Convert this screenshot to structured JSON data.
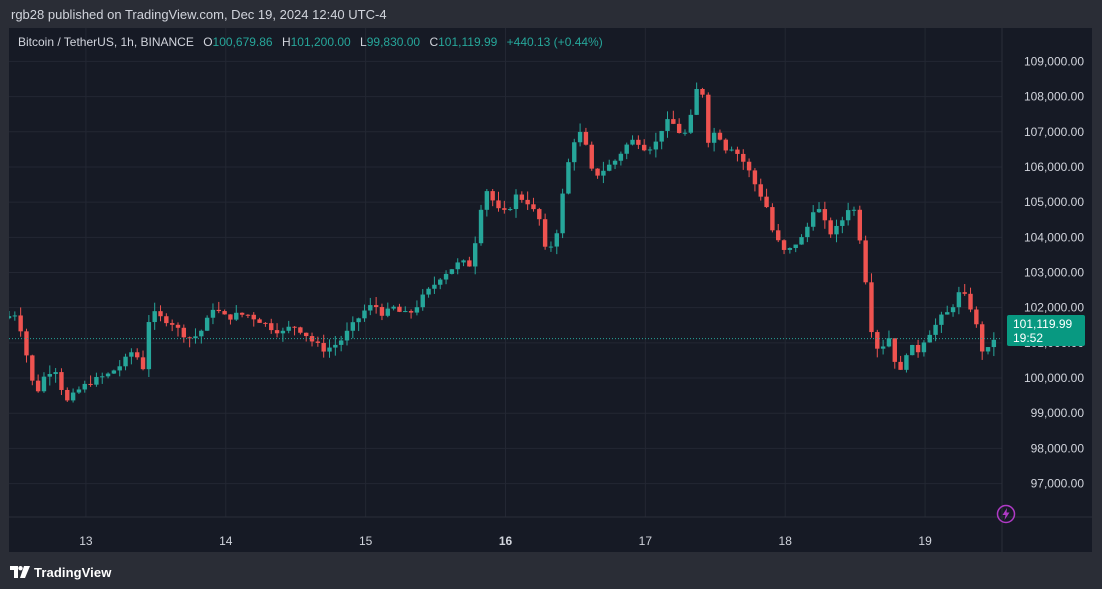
{
  "published": "rgb28 published on TradingView.com, Dec 19, 2024 12:40 UTC-4",
  "legend": {
    "symbol": "Bitcoin / TetherUS, 1h, BINANCE",
    "o_label": "O",
    "o_value": "100,679.86",
    "h_label": "H",
    "h_value": "101,200.00",
    "l_label": "L",
    "l_value": "99,830.00",
    "c_label": "C",
    "c_value": "101,119.99",
    "change": "+440.13 (+0.44%)"
  },
  "last_price": {
    "price": "101,119.99",
    "countdown": "19:52"
  },
  "footer": {
    "brand": "TradingView"
  },
  "colors": {
    "up": "#26a69a",
    "down": "#ef5350",
    "bg": "#161a25",
    "grid": "#232733",
    "text": "#d1d4dc",
    "alert": "#b03ac6"
  },
  "chart_data": {
    "type": "candlestick",
    "title": "Bitcoin / TetherUS, 1h, BINANCE",
    "interval": "1h",
    "y_ticks": [
      "109,000.00",
      "108,000.00",
      "107,000.00",
      "106,000.00",
      "105,000.00",
      "104,000.00",
      "103,000.00",
      "102,000.00",
      "101,000.00",
      "100,000.00",
      "99,000.00",
      "98,000.00",
      "97,000.00"
    ],
    "y_tick_values": [
      109000,
      108000,
      107000,
      106000,
      105000,
      104000,
      103000,
      102000,
      101000,
      100000,
      99000,
      98000,
      97000
    ],
    "ylim": [
      96050,
      109950
    ],
    "x_ticks": [
      "13",
      "14",
      "15",
      "16",
      "17",
      "18",
      "19"
    ],
    "x_tick_bold": [
      false,
      false,
      false,
      true,
      false,
      false,
      false
    ],
    "x_range_days": [
      12.45,
      19.55
    ],
    "grid": true,
    "last_price": 101119.99,
    "path": [
      [
        12.45,
        101700
      ],
      [
        12.55,
        101850
      ],
      [
        12.62,
        100600
      ],
      [
        12.68,
        99500
      ],
      [
        12.75,
        100100
      ],
      [
        12.82,
        100300
      ],
      [
        12.9,
        99300
      ],
      [
        13.0,
        99700
      ],
      [
        13.08,
        99900
      ],
      [
        13.2,
        100100
      ],
      [
        13.3,
        100400
      ],
      [
        13.38,
        100800
      ],
      [
        13.45,
        100300
      ],
      [
        13.5,
        101900
      ],
      [
        13.58,
        101700
      ],
      [
        13.65,
        101600
      ],
      [
        13.72,
        101300
      ],
      [
        13.8,
        101100
      ],
      [
        13.88,
        101400
      ],
      [
        13.95,
        102000
      ],
      [
        14.05,
        101700
      ],
      [
        14.12,
        101800
      ],
      [
        14.2,
        101800
      ],
      [
        14.3,
        101600
      ],
      [
        14.38,
        101400
      ],
      [
        14.45,
        101300
      ],
      [
        14.52,
        101500
      ],
      [
        14.6,
        101300
      ],
      [
        14.67,
        101000
      ],
      [
        14.75,
        100800
      ],
      [
        14.85,
        101000
      ],
      [
        14.95,
        101500
      ],
      [
        15.03,
        101900
      ],
      [
        15.1,
        102100
      ],
      [
        15.17,
        101800
      ],
      [
        15.24,
        102000
      ],
      [
        15.31,
        101800
      ],
      [
        15.38,
        101900
      ],
      [
        15.45,
        102300
      ],
      [
        15.52,
        102600
      ],
      [
        15.58,
        102900
      ],
      [
        15.65,
        103100
      ],
      [
        15.72,
        103300
      ],
      [
        15.8,
        103200
      ],
      [
        15.85,
        104600
      ],
      [
        15.9,
        105400
      ],
      [
        16.0,
        104700
      ],
      [
        16.05,
        104700
      ],
      [
        16.12,
        105200
      ],
      [
        16.2,
        105000
      ],
      [
        16.25,
        104700
      ],
      [
        16.3,
        104400
      ],
      [
        16.33,
        103500
      ],
      [
        16.36,
        103700
      ],
      [
        16.42,
        104300
      ],
      [
        16.45,
        105200
      ],
      [
        16.5,
        106300
      ],
      [
        16.55,
        107000
      ],
      [
        16.6,
        106900
      ],
      [
        16.65,
        105900
      ],
      [
        16.7,
        105800
      ],
      [
        16.77,
        106000
      ],
      [
        16.83,
        106200
      ],
      [
        16.9,
        106600
      ],
      [
        16.97,
        106800
      ],
      [
        17.05,
        106500
      ],
      [
        17.12,
        106700
      ],
      [
        17.18,
        107300
      ],
      [
        17.25,
        107200
      ],
      [
        17.3,
        106900
      ],
      [
        17.35,
        107000
      ],
      [
        17.4,
        108200
      ],
      [
        17.45,
        108100
      ],
      [
        17.5,
        106500
      ],
      [
        17.55,
        107200
      ],
      [
        17.6,
        106500
      ],
      [
        17.65,
        106600
      ],
      [
        17.72,
        106300
      ],
      [
        17.78,
        105900
      ],
      [
        17.85,
        105300
      ],
      [
        17.9,
        105000
      ],
      [
        17.95,
        104200
      ],
      [
        18.0,
        103800
      ],
      [
        18.05,
        103500
      ],
      [
        18.1,
        103800
      ],
      [
        18.15,
        103900
      ],
      [
        18.2,
        104300
      ],
      [
        18.25,
        104900
      ],
      [
        18.3,
        104700
      ],
      [
        18.35,
        104100
      ],
      [
        18.4,
        104200
      ],
      [
        18.45,
        104500
      ],
      [
        18.5,
        104900
      ],
      [
        18.55,
        104700
      ],
      [
        18.62,
        102700
      ],
      [
        18.67,
        101000
      ],
      [
        18.72,
        100800
      ],
      [
        18.78,
        101200
      ],
      [
        18.84,
        100300
      ],
      [
        18.88,
        100100
      ],
      [
        18.92,
        101000
      ],
      [
        18.98,
        100700
      ],
      [
        19.05,
        101200
      ],
      [
        19.1,
        101400
      ],
      [
        19.15,
        101700
      ],
      [
        19.22,
        101900
      ],
      [
        19.28,
        102400
      ],
      [
        19.33,
        102300
      ],
      [
        19.38,
        101900
      ],
      [
        19.42,
        101300
      ],
      [
        19.45,
        100800
      ],
      [
        19.5,
        100800
      ],
      [
        19.52,
        101120
      ]
    ]
  }
}
